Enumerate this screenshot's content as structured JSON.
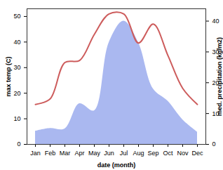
{
  "chart_data": {
    "type": "combo",
    "xlabel": "date (month)",
    "categories": [
      "Jan",
      "Feb",
      "Mar",
      "Apr",
      "May",
      "Jun",
      "Jul",
      "Aug",
      "Sep",
      "Oct",
      "Nov",
      "Dec"
    ],
    "series": [
      {
        "name": "max temp (C)",
        "type": "line",
        "color": "#cd5c5c",
        "values": [
          15.6,
          17.8,
          32,
          32.8,
          43,
          51,
          51,
          39.6,
          47,
          34.7,
          21.9,
          15.6
        ]
      },
      {
        "name": "med. precipitation (kg/m2)",
        "type": "area",
        "axis": "y2",
        "color": "#aab8f0",
        "values": [
          4.3,
          5.2,
          5,
          13.2,
          10.9,
          33,
          40,
          33,
          18,
          14,
          8,
          4
        ]
      }
    ],
    "ylim": [
      0,
      53
    ],
    "yticks": [
      0,
      10,
      20,
      30,
      40,
      50
    ],
    "y2lim": [
      0,
      44
    ],
    "y2ticks": [
      0,
      10,
      20,
      30,
      40
    ]
  }
}
